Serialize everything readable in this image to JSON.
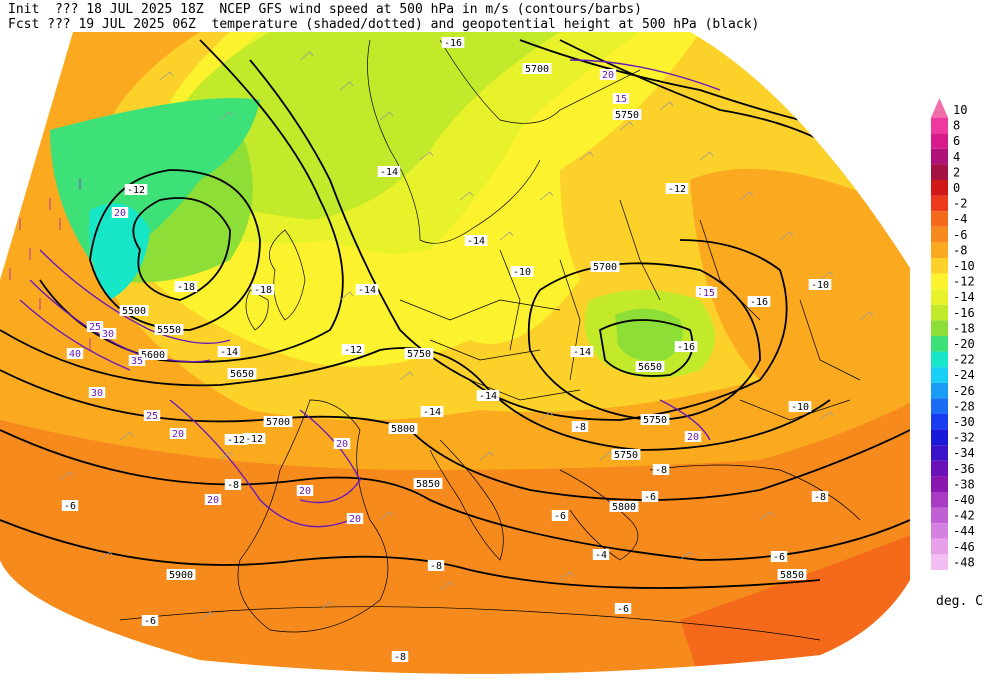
{
  "header": {
    "line1": "Init  ??? 18 JUL 2025 18Z  NCEP GFS wind speed at 500 hPa in m/s (contours/barbs)",
    "line2": "Fcst ??? 19 JUL 2025 06Z  temperature (shaded/dotted) and geopotential height at 500 hPa (black)"
  },
  "legend": {
    "units": "deg. C",
    "levels": [
      {
        "label": "10",
        "color": "#f06fa8"
      },
      {
        "label": "8",
        "color": "#ee3aa0"
      },
      {
        "label": "6",
        "color": "#d81b8c"
      },
      {
        "label": "4",
        "color": "#b0127a"
      },
      {
        "label": "2",
        "color": "#a31240"
      },
      {
        "label": "0",
        "color": "#d11818"
      },
      {
        "label": "-2",
        "color": "#ee3a1c"
      },
      {
        "label": "-4",
        "color": "#f46a1a"
      },
      {
        "label": "-6",
        "color": "#f68a1c"
      },
      {
        "label": "-8",
        "color": "#fbaa20"
      },
      {
        "label": "-10",
        "color": "#fcd22a"
      },
      {
        "label": "-12",
        "color": "#fdf22e"
      },
      {
        "label": "-14",
        "color": "#e8f22a"
      },
      {
        "label": "-16",
        "color": "#c2ea2a"
      },
      {
        "label": "-18",
        "color": "#8ede38"
      },
      {
        "label": "-20",
        "color": "#3ee078"
      },
      {
        "label": "-22",
        "color": "#18e6c8"
      },
      {
        "label": "-24",
        "color": "#1ad0f6"
      },
      {
        "label": "-26",
        "color": "#189cf4"
      },
      {
        "label": "-28",
        "color": "#1a6cf2"
      },
      {
        "label": "-30",
        "color": "#1a3cf0"
      },
      {
        "label": "-32",
        "color": "#1818d8"
      },
      {
        "label": "-34",
        "color": "#3a12c8"
      },
      {
        "label": "-36",
        "color": "#6a12b8"
      },
      {
        "label": "-38",
        "color": "#8a18b0"
      },
      {
        "label": "-40",
        "color": "#a83ac4"
      },
      {
        "label": "-42",
        "color": "#c060d4"
      },
      {
        "label": "-44",
        "color": "#d480e0"
      },
      {
        "label": "-46",
        "color": "#e6a0ea"
      },
      {
        "label": "-48",
        "color": "#f4bef2"
      }
    ]
  },
  "height_labels": [
    "5700",
    "5750",
    "5500",
    "5550",
    "5600",
    "5650",
    "5700",
    "5750",
    "5700",
    "5650",
    "5750",
    "5800",
    "5750",
    "5850",
    "5800",
    "5900",
    "5850"
  ],
  "wind_labels": [
    "20",
    "15",
    "20",
    "25",
    "30",
    "35",
    "40",
    "30",
    "25",
    "20",
    "20",
    "20",
    "15",
    "20",
    "20",
    "20",
    "15"
  ],
  "temp_labels": [
    "-16",
    "-12",
    "-14",
    "-18",
    "-14",
    "-14",
    "-12",
    "-14",
    "-14",
    "-18",
    "-16",
    "-12",
    "-14",
    "-10",
    "-16",
    "-14",
    "-12",
    "-12",
    "-10",
    "-8",
    "-8",
    "-6",
    "-6",
    "-8",
    "-6",
    "-8",
    "-6",
    "-8",
    "-6",
    "-4",
    "-6",
    "-8",
    "-10"
  ],
  "colors": {
    "height_contour": "#000000",
    "wind_contour": "#6a1ab8",
    "border": "#000000",
    "barb": "#9a9a9a"
  }
}
